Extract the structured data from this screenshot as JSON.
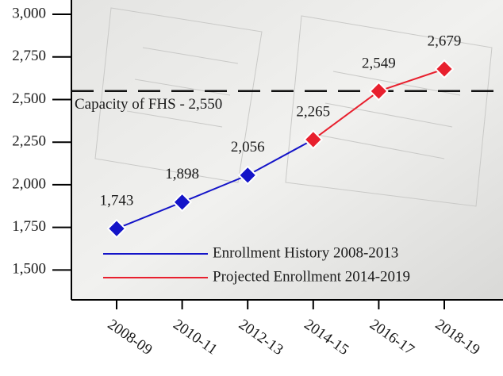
{
  "chart_data": {
    "type": "line",
    "categories": [
      "2008-09",
      "2010-11",
      "2012-13",
      "2014-15",
      "2016-17",
      "2018-19"
    ],
    "series": [
      {
        "name": "Enrollment History 2008-2013",
        "color": "#1414c8",
        "values": [
          1743,
          1898,
          2056,
          2265,
          null,
          null
        ],
        "value_labels": [
          "1,743",
          "1,898",
          "2,056",
          null,
          null,
          null
        ]
      },
      {
        "name": "Projected Enrollment 2014-2019",
        "color": "#e8202e",
        "values": [
          null,
          null,
          null,
          2265,
          2549,
          2679
        ],
        "value_labels": [
          null,
          null,
          null,
          "2,265",
          "2,549",
          "2,679"
        ]
      }
    ],
    "ylim": [
      1325,
      3000
    ],
    "yticks": [
      {
        "value": 1500,
        "label": "1,500"
      },
      {
        "value": 1750,
        "label": "1,750"
      },
      {
        "value": 2000,
        "label": "2,000"
      },
      {
        "value": 2250,
        "label": "2,250"
      },
      {
        "value": 2500,
        "label": "2,500"
      },
      {
        "value": 2750,
        "label": "2,750"
      },
      {
        "value": 3000,
        "label": "3,000"
      }
    ],
    "reference_line": {
      "value": 2550,
      "label": "Capacity of FHS - 2,550"
    },
    "legend": "lower right"
  }
}
